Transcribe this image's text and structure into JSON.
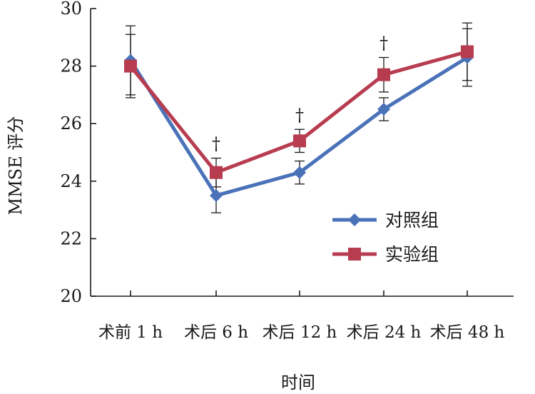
{
  "chart_data": {
    "type": "line",
    "title": "",
    "xlabel": "时间",
    "ylabel": "MMSE 评分",
    "categories": [
      "术前 1 h",
      "术后 6 h",
      "术后 12 h",
      "术后 24 h",
      "术后 48 h"
    ],
    "ylim": [
      20,
      30
    ],
    "yticks": [
      20,
      22,
      24,
      26,
      28,
      30
    ],
    "grid": false,
    "legend_position": "right-middle",
    "series": [
      {
        "name": "对照组",
        "color": "#4a72b8",
        "marker": "diamond",
        "values": [
          28.2,
          23.5,
          24.3,
          26.5,
          28.3
        ],
        "error": [
          1.2,
          0.6,
          0.4,
          0.4,
          1.0
        ]
      },
      {
        "name": "实验组",
        "color": "#b83c50",
        "marker": "square",
        "values": [
          28.0,
          24.3,
          25.4,
          27.7,
          28.5
        ],
        "error": [
          1.1,
          0.5,
          0.4,
          0.6,
          1.0
        ]
      }
    ],
    "annotations": [
      {
        "category_index": 1,
        "text": "†"
      },
      {
        "category_index": 2,
        "text": "†"
      },
      {
        "category_index": 3,
        "text": "†"
      }
    ]
  }
}
